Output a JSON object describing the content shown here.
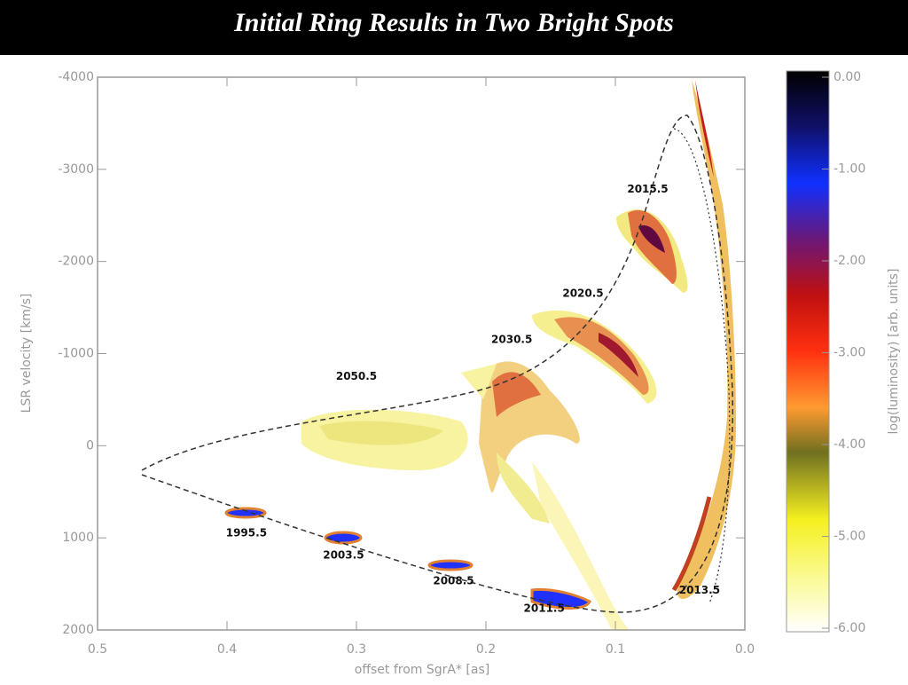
{
  "title": "Initial Ring Results in Two Bright Spots",
  "chart_data": {
    "type": "contour",
    "x_label": "offset from SgrA* [as]",
    "y_label": "LSR velocity [km/s]",
    "colorbar_label": "log(luminosity) [arb. units]",
    "xlim": [
      0.5,
      0.0
    ],
    "xticks": [
      0.5,
      0.4,
      0.3,
      0.2,
      0.1,
      {
        "value": 0,
        "label": "0.0"
      }
    ],
    "ylim": [
      2000,
      -4000
    ],
    "yticks": [
      -4000,
      -3000,
      -2000,
      -1000,
      0,
      1000,
      2000
    ],
    "clim": [
      -6,
      0
    ],
    "cticks": [
      {
        "value": 0,
        "label": "0.00"
      },
      {
        "value": -1,
        "label": "-1.00"
      },
      {
        "value": -2,
        "label": "-2.00"
      },
      {
        "value": -3,
        "label": "-3.00"
      },
      {
        "value": -4,
        "label": "-4.00"
      },
      {
        "value": -5,
        "label": "-5.00"
      },
      {
        "value": -6,
        "label": "-6.00"
      }
    ],
    "annotations": [
      {
        "label": "1995.5",
        "x": 0.385,
        "y": 950
      },
      {
        "label": "2003.5",
        "x": 0.31,
        "y": 1190
      },
      {
        "label": "2008.5",
        "x": 0.225,
        "y": 1470
      },
      {
        "label": "2011.5",
        "x": 0.155,
        "y": 1770
      },
      {
        "label": "2013.5",
        "x": 0.035,
        "y": 1570
      },
      {
        "label": "2015.5",
        "x": 0.075,
        "y": -2780
      },
      {
        "label": "2020.5",
        "x": 0.125,
        "y": -1650
      },
      {
        "label": "2030.5",
        "x": 0.18,
        "y": -1150
      },
      {
        "label": "2050.5",
        "x": 0.3,
        "y": -750
      }
    ]
  }
}
